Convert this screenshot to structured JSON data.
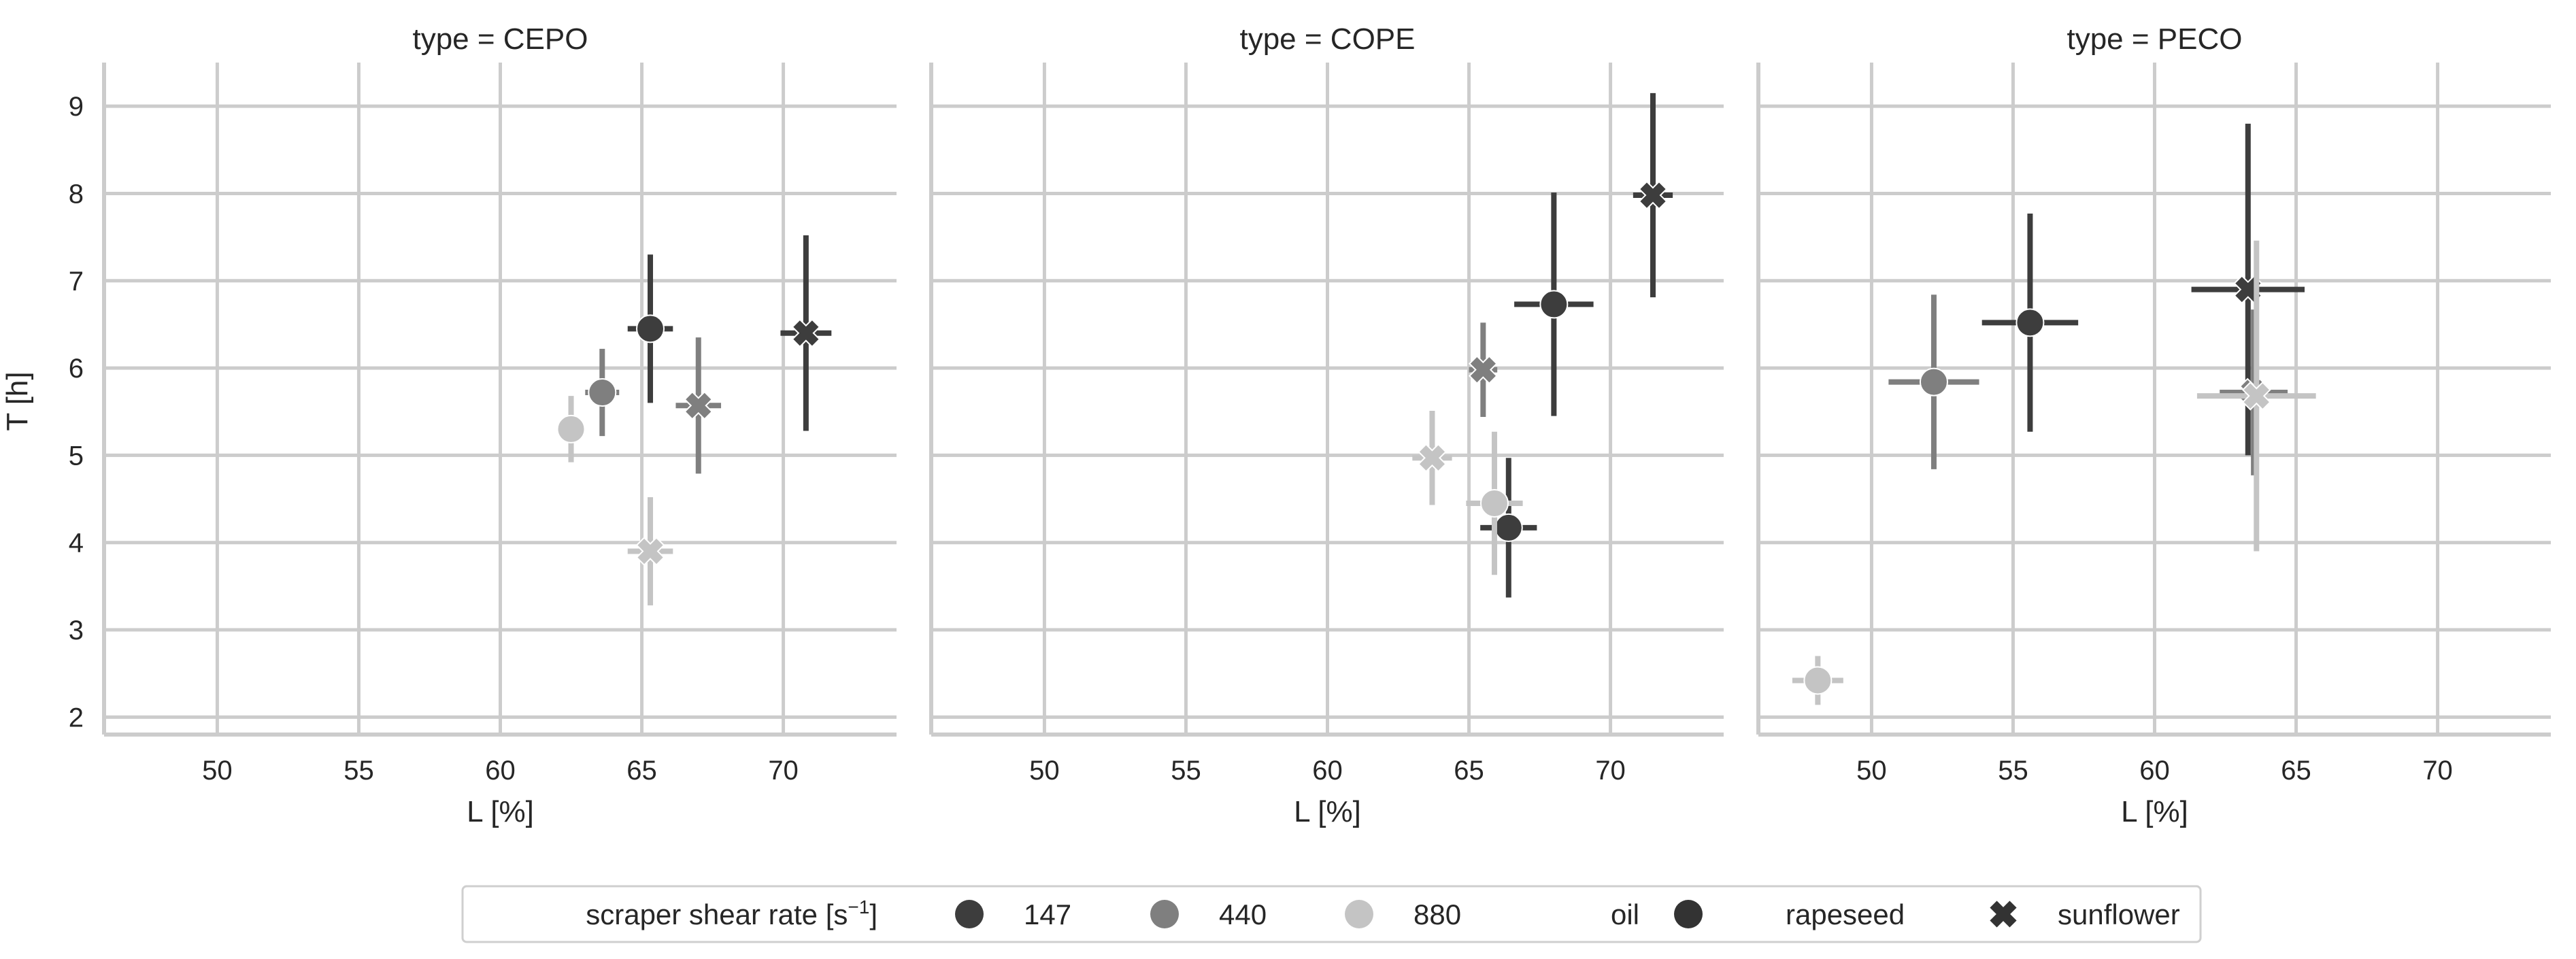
{
  "figure": {
    "ylabel": "T [h]",
    "xlabel": "L [%]",
    "legend": {
      "placement": "bottom-center",
      "hue_title": "scraper shear rate [s",
      "hue_title_sup": "−1",
      "hue_title_end": "]",
      "hue_entries": [
        {
          "label": "147",
          "color": "#3d3d3d"
        },
        {
          "label": "440",
          "color": "#7f7f7f"
        },
        {
          "label": "880",
          "color": "#c4c4c4"
        }
      ],
      "style_title": "oil",
      "style_entries": [
        {
          "label": "rapeseed",
          "marker": "circle"
        },
        {
          "label": "sunflower",
          "marker": "x"
        }
      ]
    }
  },
  "chart_data": [
    {
      "type": "scatter",
      "title": "type = CEPO",
      "xlabel": "L [%]",
      "ylabel": "T [h]",
      "xlim": [
        46,
        74
      ],
      "ylim": [
        1.8,
        9.5
      ],
      "xticks": [
        "50",
        "55",
        "60",
        "65",
        "70"
      ],
      "yticks": [
        "2",
        "3",
        "4",
        "5",
        "6",
        "7",
        "8",
        "9"
      ],
      "grid": true,
      "points": [
        {
          "rate": "147",
          "oil": "rapeseed",
          "x": 65.3,
          "y": 6.45,
          "xerr": 0.8,
          "yerr": 0.85
        },
        {
          "rate": "147",
          "oil": "sunflower",
          "x": 70.8,
          "y": 6.4,
          "xerr": 0.9,
          "yerr": 1.12
        },
        {
          "rate": "440",
          "oil": "rapeseed",
          "x": 63.6,
          "y": 5.72,
          "xerr": 0.6,
          "yerr": 0.5
        },
        {
          "rate": "440",
          "oil": "sunflower",
          "x": 67.0,
          "y": 5.57,
          "xerr": 0.8,
          "yerr": 0.78
        },
        {
          "rate": "880",
          "oil": "rapeseed",
          "x": 62.5,
          "y": 5.3,
          "xerr": 0.4,
          "yerr": 0.38
        },
        {
          "rate": "880",
          "oil": "sunflower",
          "x": 65.3,
          "y": 3.9,
          "xerr": 0.8,
          "yerr": 0.62
        }
      ]
    },
    {
      "type": "scatter",
      "title": "type = COPE",
      "xlabel": "L [%]",
      "ylabel": "",
      "xlim": [
        46,
        74
      ],
      "ylim": [
        1.8,
        9.5
      ],
      "xticks": [
        "50",
        "55",
        "60",
        "65",
        "70"
      ],
      "yticks": [
        "2",
        "3",
        "4",
        "5",
        "6",
        "7",
        "8",
        "9"
      ],
      "grid": true,
      "points": [
        {
          "rate": "147",
          "oil": "rapeseed",
          "x": 68.0,
          "y": 6.73,
          "xerr": 1.4,
          "yerr": 1.28
        },
        {
          "rate": "147",
          "oil": "sunflower",
          "x": 71.5,
          "y": 7.98,
          "xerr": 0.7,
          "yerr": 1.17
        },
        {
          "rate": "147",
          "oil": "rapeseed",
          "x": 66.4,
          "y": 4.17,
          "xerr": 1.0,
          "yerr": 0.8
        },
        {
          "rate": "440",
          "oil": "sunflower",
          "x": 65.5,
          "y": 5.98,
          "xerr": 0.5,
          "yerr": 0.54
        },
        {
          "rate": "880",
          "oil": "sunflower",
          "x": 63.7,
          "y": 4.97,
          "xerr": 0.7,
          "yerr": 0.54
        },
        {
          "rate": "880",
          "oil": "rapeseed",
          "x": 65.9,
          "y": 4.45,
          "xerr": 1.0,
          "yerr": 0.82
        }
      ]
    },
    {
      "type": "scatter",
      "title": "type = PECO",
      "xlabel": "L [%]",
      "ylabel": "",
      "xlim": [
        46,
        74
      ],
      "ylim": [
        1.8,
        9.5
      ],
      "xticks": [
        "50",
        "55",
        "60",
        "65",
        "70"
      ],
      "yticks": [
        "2",
        "3",
        "4",
        "5",
        "6",
        "7",
        "8",
        "9"
      ],
      "grid": true,
      "points": [
        {
          "rate": "147",
          "oil": "rapeseed",
          "x": 55.6,
          "y": 6.52,
          "xerr": 1.7,
          "yerr": 1.25
        },
        {
          "rate": "147",
          "oil": "sunflower",
          "x": 63.3,
          "y": 6.9,
          "xerr": 2.0,
          "yerr": 1.9
        },
        {
          "rate": "440",
          "oil": "rapeseed",
          "x": 52.2,
          "y": 5.84,
          "xerr": 1.6,
          "yerr": 1.0
        },
        {
          "rate": "440",
          "oil": "sunflower",
          "x": 63.5,
          "y": 5.72,
          "xerr": 1.2,
          "yerr": 0.95
        },
        {
          "rate": "880",
          "oil": "sunflower",
          "x": 63.6,
          "y": 5.68,
          "xerr": 2.1,
          "yerr": 1.78
        },
        {
          "rate": "880",
          "oil": "rapeseed",
          "x": 48.1,
          "y": 2.42,
          "xerr": 0.9,
          "yerr": 0.28
        }
      ]
    }
  ]
}
